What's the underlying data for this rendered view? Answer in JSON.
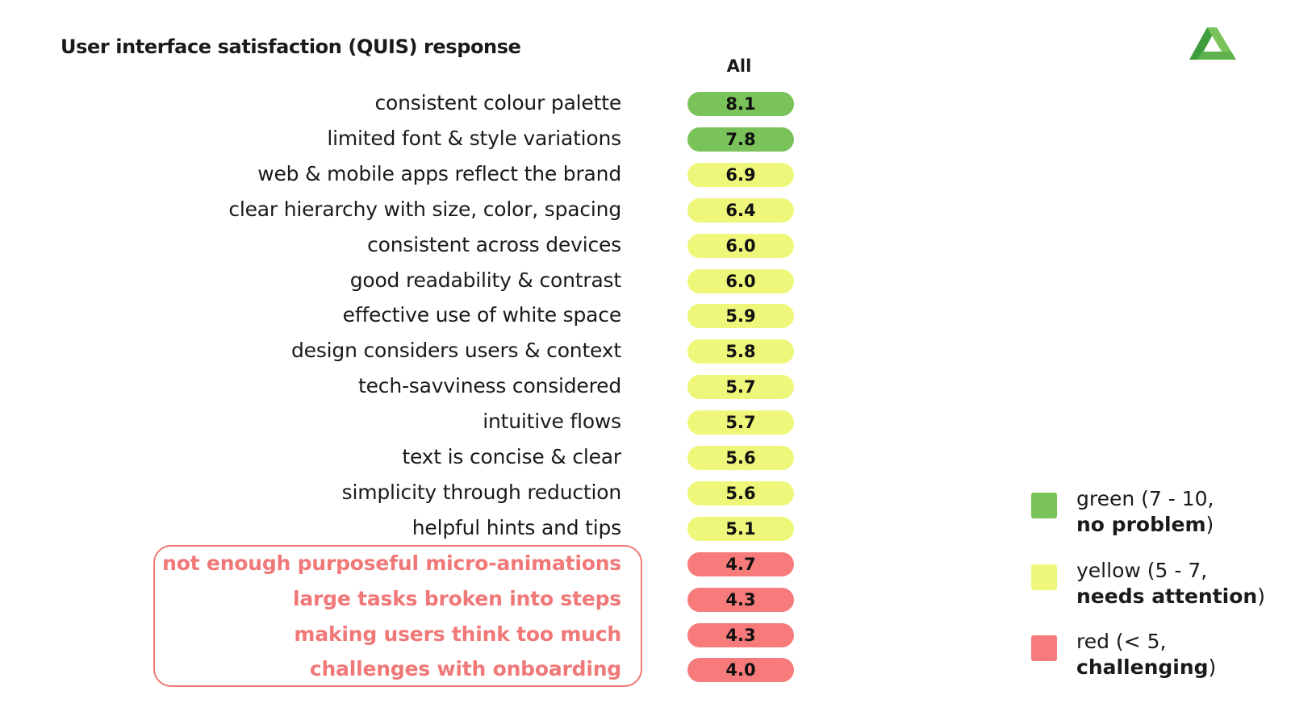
{
  "chart_data": {
    "type": "table",
    "title": "User interface satisfaction (QUIS) response",
    "column_header": "All",
    "rows": [
      {
        "label": "consistent colour palette",
        "value": "8.1",
        "rating": "green"
      },
      {
        "label": "limited font & style variations",
        "value": "7.8",
        "rating": "green"
      },
      {
        "label": "web & mobile apps reflect the brand",
        "value": "6.9",
        "rating": "yellow"
      },
      {
        "label": "clear hierarchy with size, color, spacing",
        "value": "6.4",
        "rating": "yellow"
      },
      {
        "label": "consistent across devices",
        "value": "6.0",
        "rating": "yellow"
      },
      {
        "label": "good readability & contrast",
        "value": "6.0",
        "rating": "yellow"
      },
      {
        "label": "effective use of white space",
        "value": "5.9",
        "rating": "yellow"
      },
      {
        "label": "design considers users & context",
        "value": "5.8",
        "rating": "yellow"
      },
      {
        "label": "tech-savviness considered",
        "value": "5.7",
        "rating": "yellow"
      },
      {
        "label": "intuitive flows",
        "value": "5.7",
        "rating": "yellow"
      },
      {
        "label": "text is concise & clear",
        "value": "5.6",
        "rating": "yellow"
      },
      {
        "label": "simplicity through reduction",
        "value": "5.6",
        "rating": "yellow"
      },
      {
        "label": "helpful hints and tips",
        "value": "5.1",
        "rating": "yellow"
      },
      {
        "label": "not enough purposeful micro-animations",
        "value": "4.7",
        "rating": "red"
      },
      {
        "label": "large tasks broken into steps",
        "value": "4.3",
        "rating": "red"
      },
      {
        "label": "making users think too much",
        "value": "4.3",
        "rating": "red"
      },
      {
        "label": "challenges with onboarding",
        "value": "4.0",
        "rating": "red"
      }
    ],
    "legend": [
      {
        "key": "green",
        "line1": "green (7 - 10,",
        "strong": "no problem",
        "close": ")"
      },
      {
        "key": "yellow",
        "line1": "yellow (5 - 7,",
        "strong": "needs attention",
        "close": ")"
      },
      {
        "key": "red",
        "line1": "red (< 5,",
        "strong": "challenging",
        "close": ")"
      }
    ],
    "colors": {
      "green": "#7ac35a",
      "yellow": "#eef77a",
      "red": "#f77b7b",
      "red_text": "#f07878",
      "logo_dark": "#3e9e3e",
      "logo_light": "#7ac35a"
    }
  }
}
